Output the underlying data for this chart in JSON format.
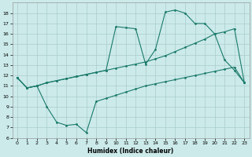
{
  "xlabel": "Humidex (Indice chaleur)",
  "bg_color": "#cceaea",
  "grid_color": "#aacccc",
  "line_color": "#1a7a6a",
  "xlim": [
    -0.5,
    23.5
  ],
  "ylim": [
    6,
    19
  ],
  "xticks": [
    0,
    1,
    2,
    3,
    4,
    5,
    6,
    7,
    8,
    9,
    10,
    11,
    12,
    13,
    14,
    15,
    16,
    17,
    18,
    19,
    20,
    21,
    22,
    23
  ],
  "yticks": [
    6,
    7,
    8,
    9,
    10,
    11,
    12,
    13,
    14,
    15,
    16,
    17,
    18
  ],
  "line_bottom_x": [
    0,
    1,
    2,
    3,
    4,
    5,
    6,
    7,
    8,
    9,
    10,
    11,
    12,
    13,
    14,
    15,
    16,
    17,
    18,
    19,
    20,
    21,
    22,
    23
  ],
  "line_bottom_y": [
    11.8,
    10.8,
    11.0,
    9.0,
    7.5,
    7.2,
    7.3,
    6.5,
    9.5,
    9.8,
    10.1,
    10.4,
    10.7,
    11.0,
    11.2,
    11.4,
    11.6,
    11.8,
    12.0,
    12.2,
    12.4,
    12.6,
    12.8,
    11.3
  ],
  "line_mid_x": [
    0,
    1,
    2,
    3,
    4,
    5,
    6,
    7,
    8,
    9,
    10,
    11,
    12,
    13,
    14,
    15,
    16,
    17,
    18,
    19,
    20,
    21,
    22,
    23
  ],
  "line_mid_y": [
    11.8,
    10.8,
    11.0,
    11.3,
    11.5,
    11.7,
    11.9,
    12.1,
    12.3,
    12.5,
    12.7,
    12.9,
    13.1,
    13.3,
    13.6,
    13.9,
    14.3,
    14.7,
    15.1,
    15.5,
    16.0,
    16.2,
    16.5,
    11.3
  ],
  "line_top_x": [
    0,
    1,
    2,
    3,
    4,
    5,
    6,
    7,
    8,
    9,
    10,
    11,
    12,
    13,
    14,
    15,
    16,
    17,
    18,
    19,
    20,
    21,
    22,
    23
  ],
  "line_top_y": [
    11.8,
    10.8,
    11.0,
    11.3,
    11.5,
    11.7,
    11.9,
    12.1,
    12.3,
    12.5,
    16.7,
    16.6,
    16.5,
    13.1,
    14.5,
    18.1,
    18.3,
    18.0,
    17.0,
    17.0,
    16.0,
    13.5,
    12.5,
    11.3
  ]
}
